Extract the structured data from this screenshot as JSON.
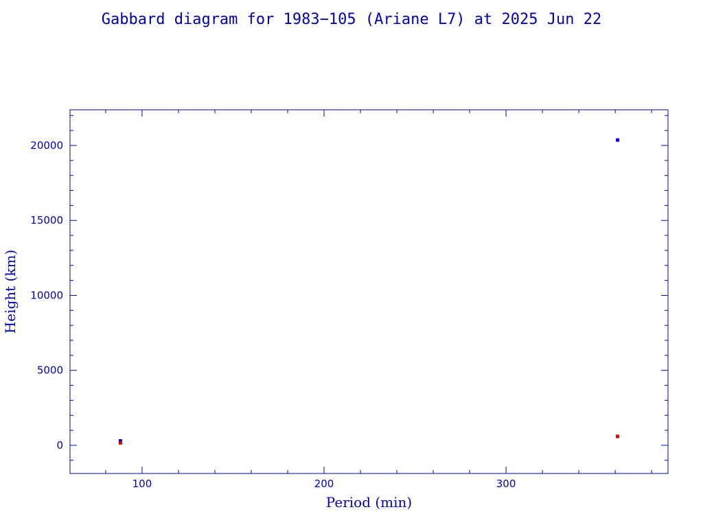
{
  "chart_data": {
    "type": "scatter",
    "title": "Gabbard diagram for 1983−105 (Ariane L7) at 2025 Jun 22",
    "xlabel": "Period (min)",
    "ylabel": "Height (km)",
    "xlim": [
      60.4,
      389
    ],
    "ylim": [
      -1880,
      22380
    ],
    "xticks": [
      100,
      200,
      300
    ],
    "xtick_labels": [
      "100",
      "200",
      "300"
    ],
    "xminor_step": 20,
    "yticks": [
      0,
      5000,
      10000,
      15000,
      20000
    ],
    "ytick_labels": [
      "0",
      "5000",
      "10000",
      "15000",
      "20000"
    ],
    "yminor_step": 1000,
    "grid": false,
    "colors": {
      "axis": "#0000b4",
      "apogee": "#0000ff",
      "perigee": "#e00000"
    },
    "series": [
      {
        "color": "#0000ff",
        "points": [
          [
            88.1,
            275
          ],
          [
            361.3,
            20340
          ]
        ]
      },
      {
        "color": "#e00000",
        "points": [
          [
            88.1,
            140
          ],
          [
            361.3,
            570
          ]
        ]
      }
    ]
  }
}
